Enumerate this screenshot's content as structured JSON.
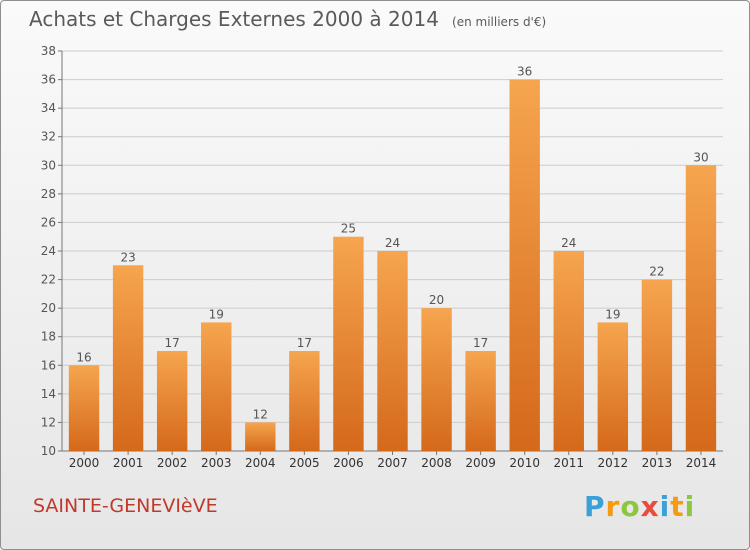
{
  "title": "Achats et Charges Externes 2000 à 2014",
  "subtitle": "(en milliers d'€)",
  "commune": "SAINTE-GENEVIèVE",
  "brand": {
    "letters": [
      "P",
      "r",
      "o",
      "x",
      "i",
      "t",
      "i"
    ],
    "colors": [
      "#3aa0d8",
      "#f39c12",
      "#8dc63f",
      "#e74c3c",
      "#3aa0d8",
      "#f39c12",
      "#8dc63f"
    ]
  },
  "colors": {
    "bar_top": "#f6a54f",
    "bar_bottom": "#d4691a",
    "grid": "#cccccc",
    "text": "#555555"
  },
  "chart_data": {
    "type": "bar",
    "categories": [
      "2000",
      "2001",
      "2002",
      "2003",
      "2004",
      "2005",
      "2006",
      "2007",
      "2008",
      "2009",
      "2010",
      "2011",
      "2012",
      "2013",
      "2014"
    ],
    "values": [
      16,
      23,
      17,
      19,
      12,
      17,
      25,
      24,
      20,
      17,
      36,
      24,
      19,
      22,
      30
    ],
    "ylim": [
      10,
      38
    ],
    "yticks": [
      10,
      12,
      14,
      16,
      18,
      20,
      22,
      24,
      26,
      28,
      30,
      32,
      34,
      36,
      38
    ],
    "grid": true,
    "data_labels": true
  }
}
